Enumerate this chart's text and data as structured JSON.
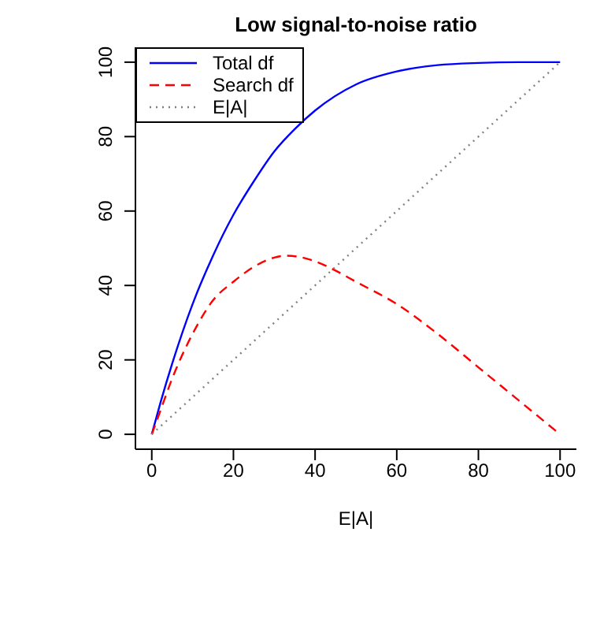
{
  "chart_data": {
    "type": "line",
    "title": "Low signal-to-noise ratio",
    "xlabel": "E|A|",
    "xlim": [
      -4,
      104
    ],
    "xticks": [
      0,
      20,
      40,
      60,
      80,
      100
    ],
    "ylim": [
      -4,
      104
    ],
    "yticks": [
      0,
      20,
      40,
      60,
      80,
      100
    ],
    "legend": "top left",
    "series": [
      {
        "name": "Total df",
        "color": "#0000ff",
        "line_style": "solid",
        "x": [
          0,
          2,
          5,
          10,
          15,
          20,
          25,
          30,
          35,
          40,
          50,
          60,
          70,
          80,
          90,
          100
        ],
        "values": [
          0,
          8,
          19,
          35,
          48,
          59,
          68,
          76,
          82,
          87,
          94,
          97.5,
          99.2,
          99.8,
          100,
          100
        ]
      },
      {
        "name": "Search df",
        "color": "#ff0000",
        "line_style": "dashed",
        "x": [
          0,
          2,
          5,
          10,
          15,
          20,
          25,
          30,
          33,
          40,
          45,
          50,
          60,
          70,
          80,
          90,
          100
        ],
        "values": [
          0,
          6,
          15,
          27,
          36,
          41,
          45,
          47.5,
          48,
          46.5,
          44,
          41,
          35,
          27,
          18,
          9,
          0
        ]
      },
      {
        "name": "E|A|",
        "color": "#808080",
        "line_style": "dotted",
        "x": [
          0,
          100
        ],
        "values": [
          0,
          100
        ]
      }
    ]
  }
}
